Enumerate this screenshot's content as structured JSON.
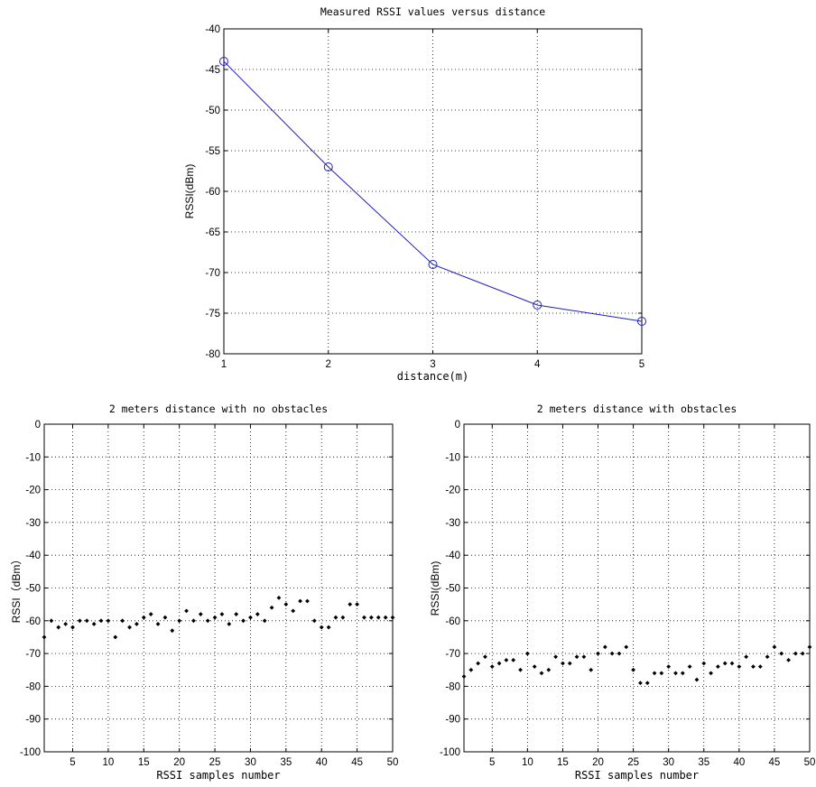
{
  "chart_data": [
    {
      "type": "line",
      "title": "Measured RSSI values versus distance",
      "xlabel": "distance(m)",
      "ylabel": "RSSI(dBm)",
      "xlim": [
        1,
        5
      ],
      "ylim": [
        -80,
        -40
      ],
      "xticks": [
        "1",
        "2",
        "3",
        "4",
        "5"
      ],
      "yticks": [
        "-40",
        "-45",
        "-50",
        "-55",
        "-60",
        "-65",
        "-70",
        "-75",
        "-80"
      ],
      "grid": true,
      "marker": "circle",
      "line_color": "#1f1fbf",
      "x": [
        1,
        2,
        3,
        4,
        5
      ],
      "y": [
        -44,
        -57,
        -69,
        -74,
        -76
      ]
    },
    {
      "type": "scatter",
      "title": "2 meters distance with no obstacles",
      "xlabel": "RSSI samples number",
      "ylabel": "RSSI（dBm）",
      "xlim": [
        1,
        50
      ],
      "ylim": [
        -100,
        0
      ],
      "xticks": [
        "5",
        "10",
        "15",
        "20",
        "25",
        "30",
        "35",
        "40",
        "45",
        "50"
      ],
      "yticks": [
        "0",
        "-10",
        "-20",
        "-30",
        "-40",
        "-50",
        "-60",
        "-70",
        "-80",
        "-90",
        "-100"
      ],
      "grid": true,
      "marker": "dot",
      "marker_color": "#000000",
      "x": [
        1,
        2,
        3,
        4,
        5,
        6,
        7,
        8,
        9,
        10,
        11,
        12,
        13,
        14,
        15,
        16,
        17,
        18,
        19,
        20,
        21,
        22,
        23,
        24,
        25,
        26,
        27,
        28,
        29,
        30,
        31,
        32,
        33,
        34,
        35,
        36,
        37,
        38,
        39,
        40,
        41,
        42,
        43,
        44,
        45,
        46,
        47,
        48,
        49,
        50
      ],
      "y": [
        -65,
        -60,
        -62,
        -61,
        -62,
        -60,
        -60,
        -61,
        -60,
        -60,
        -65,
        -60,
        -62,
        -61,
        -59,
        -58,
        -61,
        -59,
        -63,
        -60,
        -57,
        -60,
        -58,
        -60,
        -59,
        -58,
        -61,
        -58,
        -60,
        -59,
        -58,
        -60,
        -56,
        -53,
        -55,
        -57,
        -54,
        -54,
        -60,
        -62,
        -62,
        -59,
        -59,
        -55,
        -55,
        -59,
        -59,
        -59,
        -59,
        -59
      ]
    },
    {
      "type": "scatter",
      "title": "2 meters distance with obstacles",
      "xlabel": "RSSI samples number",
      "ylabel": "RSSI(dBm)",
      "xlim": [
        1,
        50
      ],
      "ylim": [
        -100,
        0
      ],
      "xticks": [
        "5",
        "10",
        "15",
        "20",
        "25",
        "30",
        "35",
        "40",
        "45",
        "50"
      ],
      "yticks": [
        "0",
        "-10",
        "-20",
        "-30",
        "-40",
        "-50",
        "-60",
        "-70",
        "-80",
        "-90",
        "-100"
      ],
      "grid": true,
      "marker": "dot",
      "marker_color": "#000000",
      "x": [
        1,
        2,
        3,
        4,
        5,
        6,
        7,
        8,
        9,
        10,
        11,
        12,
        13,
        14,
        15,
        16,
        17,
        18,
        19,
        20,
        21,
        22,
        23,
        24,
        25,
        26,
        27,
        28,
        29,
        30,
        31,
        32,
        33,
        34,
        35,
        36,
        37,
        38,
        39,
        40,
        41,
        42,
        43,
        44,
        45,
        46,
        47,
        48,
        49,
        50
      ],
      "y": [
        -77,
        -75,
        -73,
        -71,
        -74,
        -73,
        -72,
        -72,
        -75,
        -70,
        -74,
        -76,
        -75,
        -71,
        -73,
        -73,
        -71,
        -71,
        -75,
        -70,
        -68,
        -70,
        -70,
        -68,
        -75,
        -79,
        -79,
        -76,
        -76,
        -74,
        -76,
        -76,
        -74,
        -78,
        -73,
        -76,
        -74,
        -73,
        -73,
        -74,
        -71,
        -74,
        -74,
        -71,
        -68,
        -70,
        -72,
        -70,
        -70,
        -68
      ]
    }
  ]
}
